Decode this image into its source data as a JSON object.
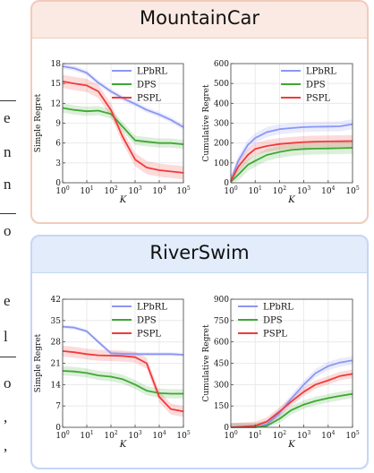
{
  "page_edge_fragments": [
    "e",
    "n",
    "n",
    "o",
    "e",
    "l",
    "o",
    ",",
    ","
  ],
  "colors": {
    "LPbRL": "#8c96f2",
    "DPS": "#3ea832",
    "PSPL": "#f03a3a"
  },
  "panels": [
    {
      "title": "MountainCar"
    },
    {
      "title": "RiverSwim"
    }
  ],
  "chart_data": [
    {
      "type": "line",
      "panel": "MountainCar",
      "xlabel": "K",
      "ylabel": "Simple Regret",
      "xscale": "log",
      "xlim": [
        1,
        100000
      ],
      "ylim": [
        0,
        18
      ],
      "xticks": [
        "10^0",
        "10^1",
        "10^2",
        "10^3",
        "10^4",
        "10^5"
      ],
      "yticks": [
        "0",
        "3",
        "6",
        "9",
        "12",
        "15",
        "18"
      ],
      "legend_position": "top-right",
      "series": [
        {
          "name": "LPbRL",
          "x": [
            1,
            3,
            10,
            30,
            100,
            300,
            1000,
            3000,
            10000,
            30000,
            100000
          ],
          "y": [
            17.6,
            17.3,
            16.6,
            15.1,
            13.8,
            12.8,
            11.9,
            11.0,
            10.3,
            9.5,
            8.4
          ],
          "band": 0.4
        },
        {
          "name": "DPS",
          "x": [
            1,
            3,
            10,
            30,
            100,
            300,
            1000,
            3000,
            10000,
            30000,
            100000
          ],
          "y": [
            11.3,
            11.0,
            10.8,
            10.9,
            10.4,
            8.5,
            6.4,
            6.2,
            6.0,
            6.0,
            5.8
          ],
          "band": 0.7
        },
        {
          "name": "PSPL",
          "x": [
            1,
            3,
            10,
            30,
            100,
            300,
            1000,
            3000,
            10000,
            30000,
            100000
          ],
          "y": [
            15.3,
            15.0,
            14.7,
            13.8,
            11.0,
            7.0,
            3.5,
            2.3,
            1.9,
            1.7,
            1.5
          ],
          "band": 1.0
        }
      ]
    },
    {
      "type": "line",
      "panel": "MountainCar",
      "xlabel": "K",
      "ylabel": "Cumulative Regret",
      "xscale": "log",
      "xlim": [
        1,
        100000
      ],
      "ylim": [
        0,
        600
      ],
      "xticks": [
        "10^0",
        "10^1",
        "10^2",
        "10^3",
        "10^4",
        "10^5"
      ],
      "yticks": [
        "0",
        "100",
        "200",
        "300",
        "400",
        "500",
        "600"
      ],
      "legend_position": "top-right",
      "series": [
        {
          "name": "LPbRL",
          "x": [
            1,
            2,
            5,
            10,
            30,
            100,
            300,
            1000,
            3000,
            10000,
            30000,
            100000
          ],
          "y": [
            10,
            110,
            190,
            225,
            255,
            270,
            275,
            280,
            282,
            283,
            284,
            295
          ],
          "band": 25
        },
        {
          "name": "DPS",
          "x": [
            1,
            2,
            5,
            10,
            30,
            100,
            300,
            1000,
            3000,
            10000,
            30000,
            100000
          ],
          "y": [
            5,
            40,
            90,
            110,
            140,
            155,
            165,
            170,
            172,
            173,
            174,
            176
          ],
          "band": 30
        },
        {
          "name": "PSPL",
          "x": [
            1,
            2,
            5,
            10,
            30,
            100,
            300,
            1000,
            3000,
            10000,
            30000,
            100000
          ],
          "y": [
            8,
            80,
            140,
            170,
            185,
            195,
            200,
            205,
            207,
            208,
            209,
            210
          ],
          "band": 30
        }
      ]
    },
    {
      "type": "line",
      "panel": "RiverSwim",
      "xlabel": "K",
      "ylabel": "Simple Regret",
      "xscale": "log",
      "xlim": [
        1,
        100000
      ],
      "ylim": [
        0,
        42
      ],
      "xticks": [
        "10^0",
        "10^1",
        "10^2",
        "10^3",
        "10^4",
        "10^5"
      ],
      "yticks": [
        "0",
        "7",
        "14",
        "21",
        "28",
        "35",
        "42"
      ],
      "legend_position": "top-right",
      "series": [
        {
          "name": "LPbRL",
          "x": [
            1,
            3,
            10,
            30,
            100,
            300,
            1000,
            3000,
            10000,
            30000,
            100000
          ],
          "y": [
            33.0,
            32.7,
            31.5,
            28.0,
            24.3,
            24.1,
            24.0,
            24.0,
            24.0,
            24.0,
            23.8
          ],
          "band": 0.6
        },
        {
          "name": "DPS",
          "x": [
            1,
            3,
            10,
            30,
            100,
            300,
            1000,
            3000,
            10000,
            30000,
            100000
          ],
          "y": [
            18.5,
            18.3,
            17.8,
            17.0,
            16.6,
            15.8,
            14.0,
            12.0,
            11.2,
            11.0,
            11.0
          ],
          "band": 1.5
        },
        {
          "name": "PSPL",
          "x": [
            1,
            3,
            10,
            30,
            100,
            300,
            1000,
            3000,
            10000,
            30000,
            100000
          ],
          "y": [
            25.0,
            24.6,
            24.0,
            23.6,
            23.5,
            23.4,
            23.0,
            21.0,
            10.0,
            6.0,
            5.2
          ],
          "band": 1.8
        }
      ]
    },
    {
      "type": "line",
      "panel": "RiverSwim",
      "xlabel": "K",
      "ylabel": "Cumulative Regret",
      "xscale": "log",
      "xlim": [
        1,
        100000
      ],
      "ylim": [
        0,
        900
      ],
      "xticks": [
        "10^0",
        "10^1",
        "10^2",
        "10^3",
        "10^4",
        "10^5"
      ],
      "yticks": [
        "0",
        "150",
        "300",
        "450",
        "600",
        "750",
        "900"
      ],
      "legend_position": "top-left",
      "series": [
        {
          "name": "LPbRL",
          "x": [
            1,
            10,
            30,
            100,
            300,
            1000,
            3000,
            10000,
            30000,
            100000
          ],
          "y": [
            0,
            0,
            20,
            100,
            200,
            300,
            380,
            430,
            455,
            470
          ],
          "band": 30
        },
        {
          "name": "DPS",
          "x": [
            1,
            10,
            30,
            100,
            300,
            1000,
            3000,
            10000,
            30000,
            100000
          ],
          "y": [
            0,
            0,
            10,
            60,
            120,
            160,
            185,
            205,
            220,
            235
          ],
          "band": 30
        },
        {
          "name": "PSPL",
          "x": [
            1,
            10,
            30,
            100,
            300,
            1000,
            3000,
            10000,
            30000,
            100000
          ],
          "y": [
            0,
            10,
            40,
            110,
            180,
            250,
            300,
            330,
            360,
            375
          ],
          "band": 30
        }
      ]
    }
  ]
}
